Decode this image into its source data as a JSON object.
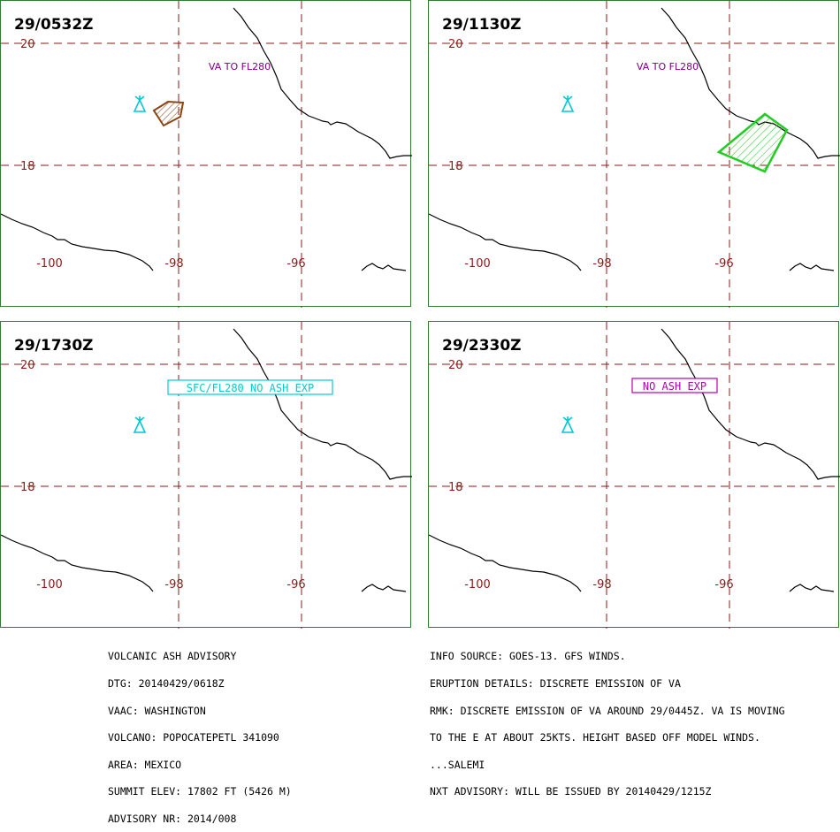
{
  "colors": {
    "grid": "#8b1a1a",
    "coast": "#000000",
    "panel_border": "#2e7d32",
    "volcano_icon": "#00c8d4",
    "ash_label": "#800080",
    "cloud_obs": "#8b4513",
    "cloud_fcst_green": "#22cc22",
    "label_cyan": "#00cccc",
    "label_magenta": "#b000b0"
  },
  "map_labels": {
    "lat_20": "20",
    "lat_18": "18",
    "lon_100": "-100",
    "lon_98": "-98",
    "lon_96": "-96"
  },
  "panels": [
    {
      "time": "29/0532Z",
      "label": "VA TO FL280",
      "label_style": "plain-purple",
      "cloud": "brown"
    },
    {
      "time": "29/1130Z",
      "label": "VA TO FL280",
      "label_style": "plain-purple",
      "cloud": "green"
    },
    {
      "time": "29/1730Z",
      "label": "SFC/FL280 NO ASH EXP",
      "label_style": "box-cyan",
      "cloud": "none"
    },
    {
      "time": "29/2330Z",
      "label": "NO ASH EXP",
      "label_style": "box-magenta",
      "cloud": "none"
    }
  ],
  "advisory_left": [
    "VOLCANIC ASH ADVISORY",
    "DTG: 20140429/0618Z",
    "VAAC: WASHINGTON",
    "VOLCANO: POPOCATEPETL 341090",
    "AREA: MEXICO",
    "SUMMIT ELEV: 17802 FT (5426 M)",
    "ADVISORY NR: 2014/008"
  ],
  "advisory_right": [
    "INFO SOURCE: GOES-13. GFS WINDS.",
    "ERUPTION DETAILS: DISCRETE EMISSION OF VA",
    "RMK: DISCRETE EMISSION OF VA AROUND 29/0445Z. VA IS MOVING",
    "TO THE E AT ABOUT 25KTS. HEIGHT BASED OFF MODEL WINDS.",
    "...SALEMI",
    "NXT ADVISORY: WILL BE ISSUED BY 20140429/1215Z"
  ]
}
